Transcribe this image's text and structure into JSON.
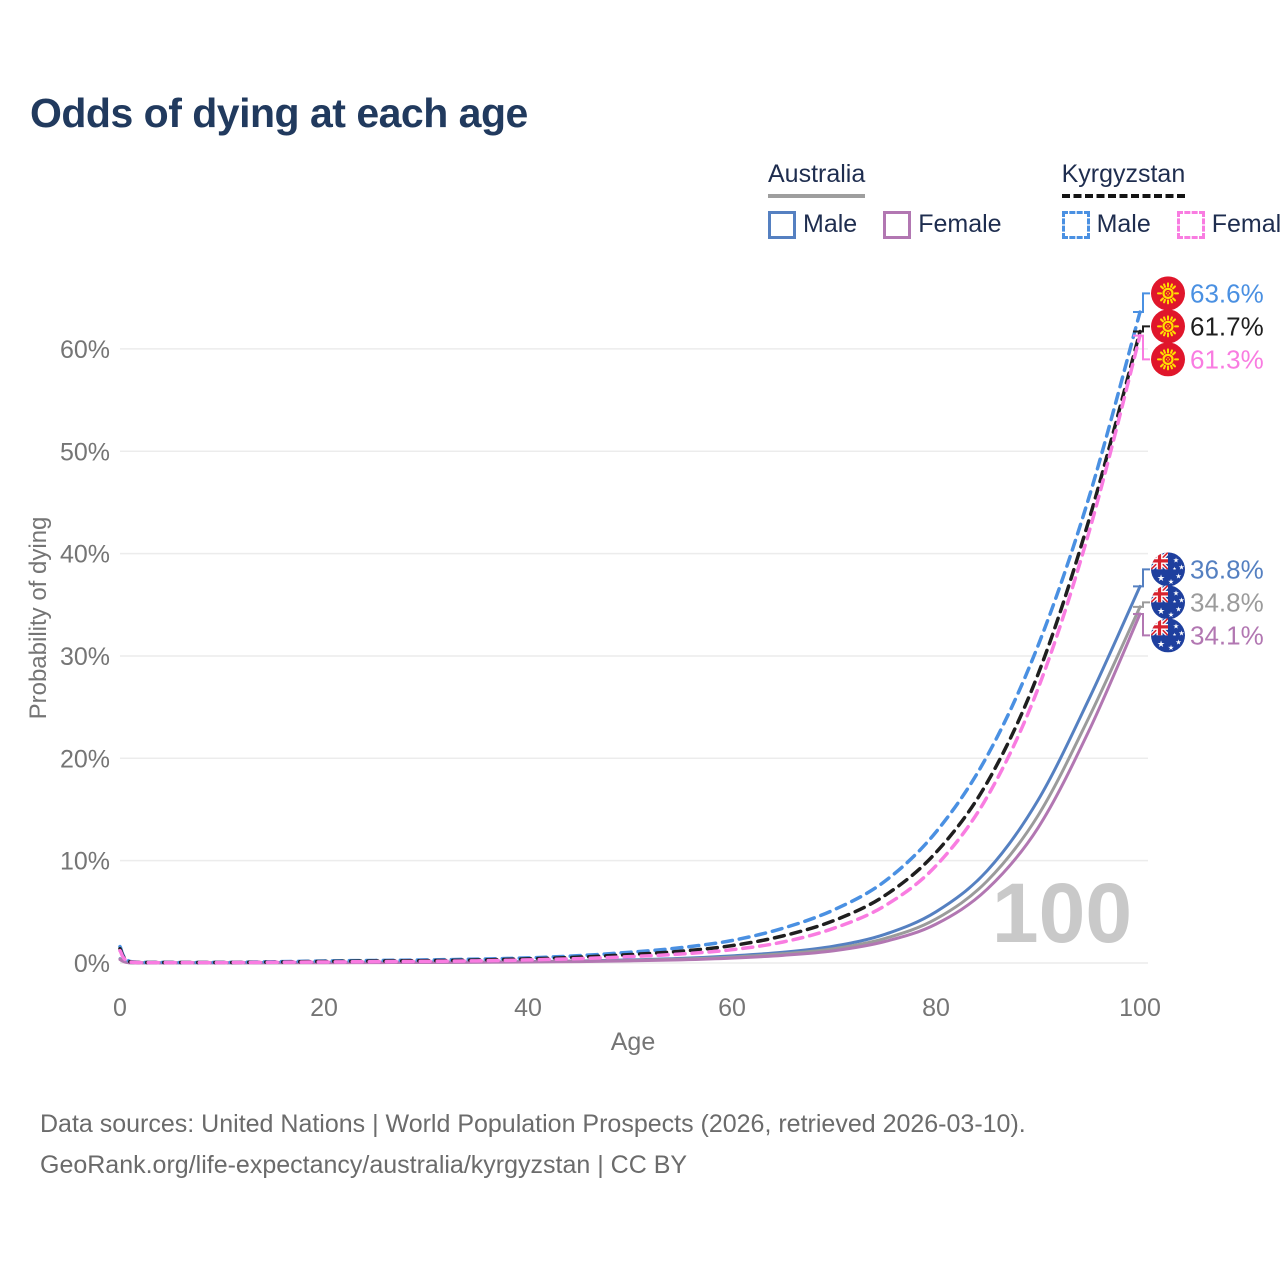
{
  "title": "Odds of dying at each age",
  "watermark_age": "100",
  "legend": {
    "groups": [
      {
        "label": "Australia",
        "line_style": "solid",
        "underline_color": "#9e9e9e",
        "items": [
          {
            "label": "Male",
            "color": "#5580c1"
          },
          {
            "label": "Female",
            "color": "#b277b2"
          }
        ]
      },
      {
        "label": "Kyrgyzstan",
        "line_style": "dashed",
        "underline_color": "#141414",
        "items": [
          {
            "label": "Male",
            "color": "#4a90e2"
          },
          {
            "label": "Female",
            "color": "#f97ce1"
          }
        ]
      }
    ]
  },
  "footer": {
    "line1": "Data sources: United Nations | World Population Prospects (2026, retrieved 2026-03-10).",
    "line2": "GeoRank.org/life-expectancy/australia/kyrgyzstan | CC BY"
  },
  "chart_data": {
    "type": "line",
    "title": "Odds of dying at each age",
    "xlabel": "Age",
    "ylabel": "Probability of dying",
    "x_ticks": [
      0,
      20,
      40,
      60,
      80,
      100
    ],
    "y_ticks_percent": [
      0,
      10,
      20,
      30,
      40,
      50,
      60
    ],
    "xlim": [
      0,
      100
    ],
    "ylim_percent": [
      0,
      65
    ],
    "grid": "horizontal-only",
    "legend_position": "top-right",
    "ages": [
      0,
      1,
      5,
      10,
      15,
      20,
      25,
      30,
      35,
      40,
      45,
      50,
      55,
      60,
      65,
      70,
      75,
      80,
      85,
      90,
      95,
      100
    ],
    "series": [
      {
        "name": "Australia Male",
        "country": "Australia",
        "sex": "Male",
        "color": "#5580c1",
        "dash": "solid",
        "flag": "australia",
        "end_value_percent": 36.8,
        "end_label": "36.8%",
        "values_percent": [
          0.42,
          0.03,
          0.01,
          0.01,
          0.04,
          0.06,
          0.07,
          0.08,
          0.1,
          0.14,
          0.2,
          0.3,
          0.45,
          0.7,
          1.05,
          1.65,
          2.8,
          5.0,
          9.0,
          15.9,
          25.8,
          36.8
        ]
      },
      {
        "name": "Australia Both Sexes",
        "country": "Australia",
        "sex": "All",
        "color": "#9b9b9b",
        "dash": "solid",
        "flag": "australia",
        "end_value_percent": 34.8,
        "end_label": "34.8%",
        "values_percent": [
          0.38,
          0.03,
          0.01,
          0.01,
          0.03,
          0.04,
          0.05,
          0.07,
          0.09,
          0.12,
          0.17,
          0.25,
          0.38,
          0.58,
          0.9,
          1.4,
          2.4,
          4.3,
          8.0,
          14.4,
          24.0,
          34.8
        ]
      },
      {
        "name": "Australia Female",
        "country": "Australia",
        "sex": "Female",
        "color": "#b277b2",
        "dash": "solid",
        "flag": "australia",
        "end_value_percent": 34.1,
        "end_label": "34.1%",
        "values_percent": [
          0.33,
          0.02,
          0.01,
          0.01,
          0.02,
          0.03,
          0.04,
          0.05,
          0.07,
          0.1,
          0.14,
          0.21,
          0.31,
          0.48,
          0.75,
          1.2,
          2.1,
          3.8,
          7.2,
          13.2,
          22.7,
          34.1
        ]
      },
      {
        "name": "Kyrgyzstan Male",
        "country": "Kyrgyzstan",
        "sex": "Male",
        "color": "#4a90e2",
        "dash": "dashed",
        "flag": "kyrgyzstan",
        "end_value_percent": 63.6,
        "end_label": "63.6%",
        "values_percent": [
          1.6,
          0.15,
          0.06,
          0.06,
          0.12,
          0.2,
          0.25,
          0.3,
          0.38,
          0.5,
          0.72,
          1.05,
          1.5,
          2.2,
          3.4,
          5.2,
          8.0,
          12.8,
          20.2,
          31.0,
          45.5,
          63.6
        ]
      },
      {
        "name": "Kyrgyzstan Both Sexes",
        "country": "Kyrgyzstan",
        "sex": "All",
        "color": "#1f1f1f",
        "dash": "dashed",
        "flag": "kyrgyzstan",
        "end_value_percent": 61.7,
        "end_label": "61.7%",
        "values_percent": [
          1.4,
          0.12,
          0.05,
          0.05,
          0.09,
          0.15,
          0.19,
          0.23,
          0.29,
          0.4,
          0.57,
          0.82,
          1.15,
          1.7,
          2.65,
          4.15,
          6.6,
          10.8,
          17.6,
          28.2,
          43.3,
          61.7
        ]
      },
      {
        "name": "Kyrgyzstan Female",
        "country": "Kyrgyzstan",
        "sex": "Female",
        "color": "#f97ce1",
        "dash": "dashed",
        "flag": "kyrgyzstan",
        "end_value_percent": 61.3,
        "end_label": "61.3%",
        "values_percent": [
          1.2,
          0.1,
          0.04,
          0.04,
          0.07,
          0.1,
          0.13,
          0.16,
          0.21,
          0.3,
          0.43,
          0.62,
          0.88,
          1.3,
          2.05,
          3.4,
          5.6,
          9.5,
          16.2,
          26.8,
          42.1,
          61.3
        ]
      }
    ]
  }
}
